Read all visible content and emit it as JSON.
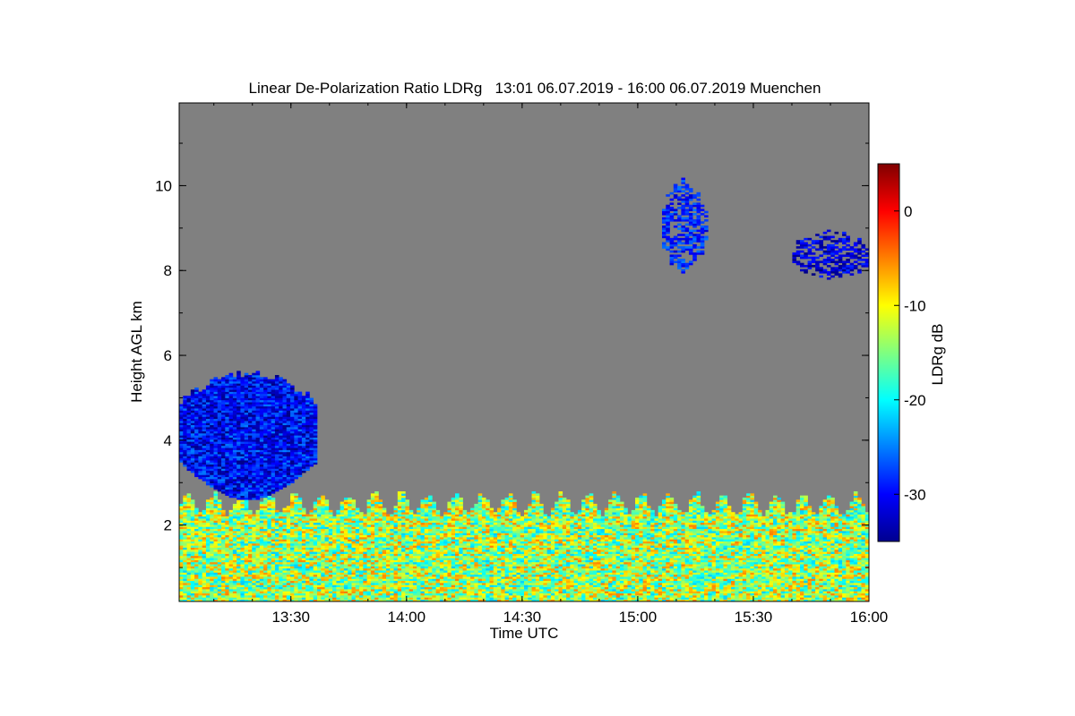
{
  "chart_data": {
    "type": "heatmap",
    "title": "Linear De-Polarization Ratio LDRg   13:01 06.07.2019 - 16:00 06.07.2019 Muenchen",
    "xlabel": "Time UTC",
    "ylabel": "Height AGL km",
    "xlim": [
      "13:01",
      "16:00"
    ],
    "ylim": [
      0.2,
      11.95
    ],
    "x_ticks": [
      "13:30",
      "14:00",
      "14:30",
      "15:00",
      "15:30",
      "16:00"
    ],
    "y_ticks": [
      2,
      4,
      6,
      8,
      10
    ],
    "background_color": "#808080",
    "colorbar": {
      "label": "LDRg dB",
      "range": [
        -35,
        5
      ],
      "ticks": [
        0,
        -10,
        -20,
        -30
      ],
      "colormap": "jet"
    },
    "features": [
      {
        "region": "boundary layer",
        "time_start": "13:01",
        "time_end": "16:00",
        "height_top_km": 2.5,
        "ldr_range_db": [
          -22,
          -5
        ]
      },
      {
        "region": "mid-level cloud",
        "time_start": "13:01",
        "time_end": "13:37",
        "height_bottom_km": 2.5,
        "height_top_km": 5.6,
        "ldr_range_db": [
          -35,
          -25
        ]
      },
      {
        "region": "cirrus",
        "time_start": "15:06",
        "time_end": "15:18",
        "height_bottom_km": 8.0,
        "height_top_km": 10.1,
        "ldr_range_db": [
          -32,
          -25
        ]
      },
      {
        "region": "cirrus",
        "time_start": "15:40",
        "time_end": "16:00",
        "height_bottom_km": 7.8,
        "height_top_km": 8.9,
        "ldr_range_db": [
          -35,
          -28
        ]
      }
    ]
  }
}
